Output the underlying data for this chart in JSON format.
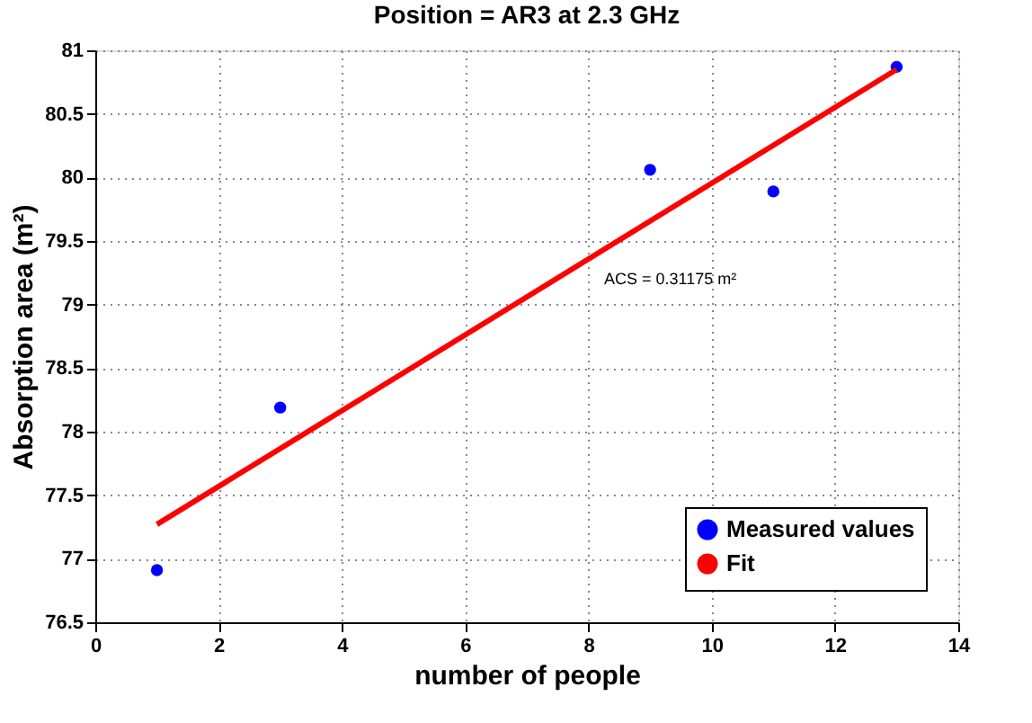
{
  "chart_data": {
    "type": "scatter",
    "title": "Position = AR3 at 2.3 GHz",
    "xlabel": "number of people",
    "ylabel": "Absorption area (m²)",
    "x": [
      1,
      3,
      9,
      11,
      13
    ],
    "series": [
      {
        "name": "Measured values",
        "type": "scatter",
        "color": "#0000ff",
        "marker": "circle",
        "values": [
          76.91,
          78.19,
          80.06,
          79.89,
          80.87
        ]
      },
      {
        "name": "Fit",
        "type": "line",
        "color": "#ff0000",
        "line_style": "solid",
        "x": [
          1,
          13
        ],
        "values": [
          77.27,
          80.85
        ]
      }
    ],
    "annotations": [
      "ACS = 0.31175 m²"
    ],
    "xlim": [
      0,
      14
    ],
    "xticks": [
      0,
      2,
      4,
      6,
      8,
      10,
      12,
      14
    ],
    "ylim": [
      76.5,
      81
    ],
    "yticks": [
      76.5,
      77,
      77.5,
      78,
      78.5,
      79,
      79.5,
      80,
      80.5,
      81
    ],
    "grid": true,
    "legend": "bottom right"
  }
}
